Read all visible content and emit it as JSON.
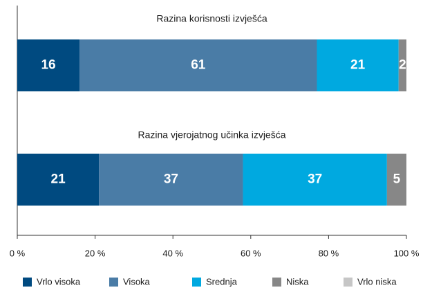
{
  "chart_data": {
    "type": "stacked-barh",
    "categories": [
      "Razina korisnosti izvješća",
      "Razina vjerojatnog učinka izvješća"
    ],
    "series": [
      {
        "name": "Vrlo visoka",
        "color": "#004a80",
        "values": [
          16,
          21
        ]
      },
      {
        "name": "Visoka",
        "color": "#4a7ca6",
        "values": [
          61,
          37
        ]
      },
      {
        "name": "Srednja",
        "color": "#00a9e0",
        "values": [
          21,
          37
        ]
      },
      {
        "name": "Niska",
        "color": "#878787",
        "values": [
          2,
          5
        ]
      },
      {
        "name": "Vrlo niska",
        "color": "#c6c6c6",
        "values": [
          0,
          0
        ]
      }
    ],
    "xlim": [
      0,
      100
    ],
    "xticks": [
      {
        "value": 0,
        "label": "0 %"
      },
      {
        "value": 20,
        "label": "20 %"
      },
      {
        "value": 40,
        "label": "40 %"
      },
      {
        "value": 60,
        "label": "60 %"
      },
      {
        "value": 80,
        "label": "80 %"
      },
      {
        "value": 100,
        "label": "100 %"
      }
    ],
    "legend": "bottom"
  }
}
